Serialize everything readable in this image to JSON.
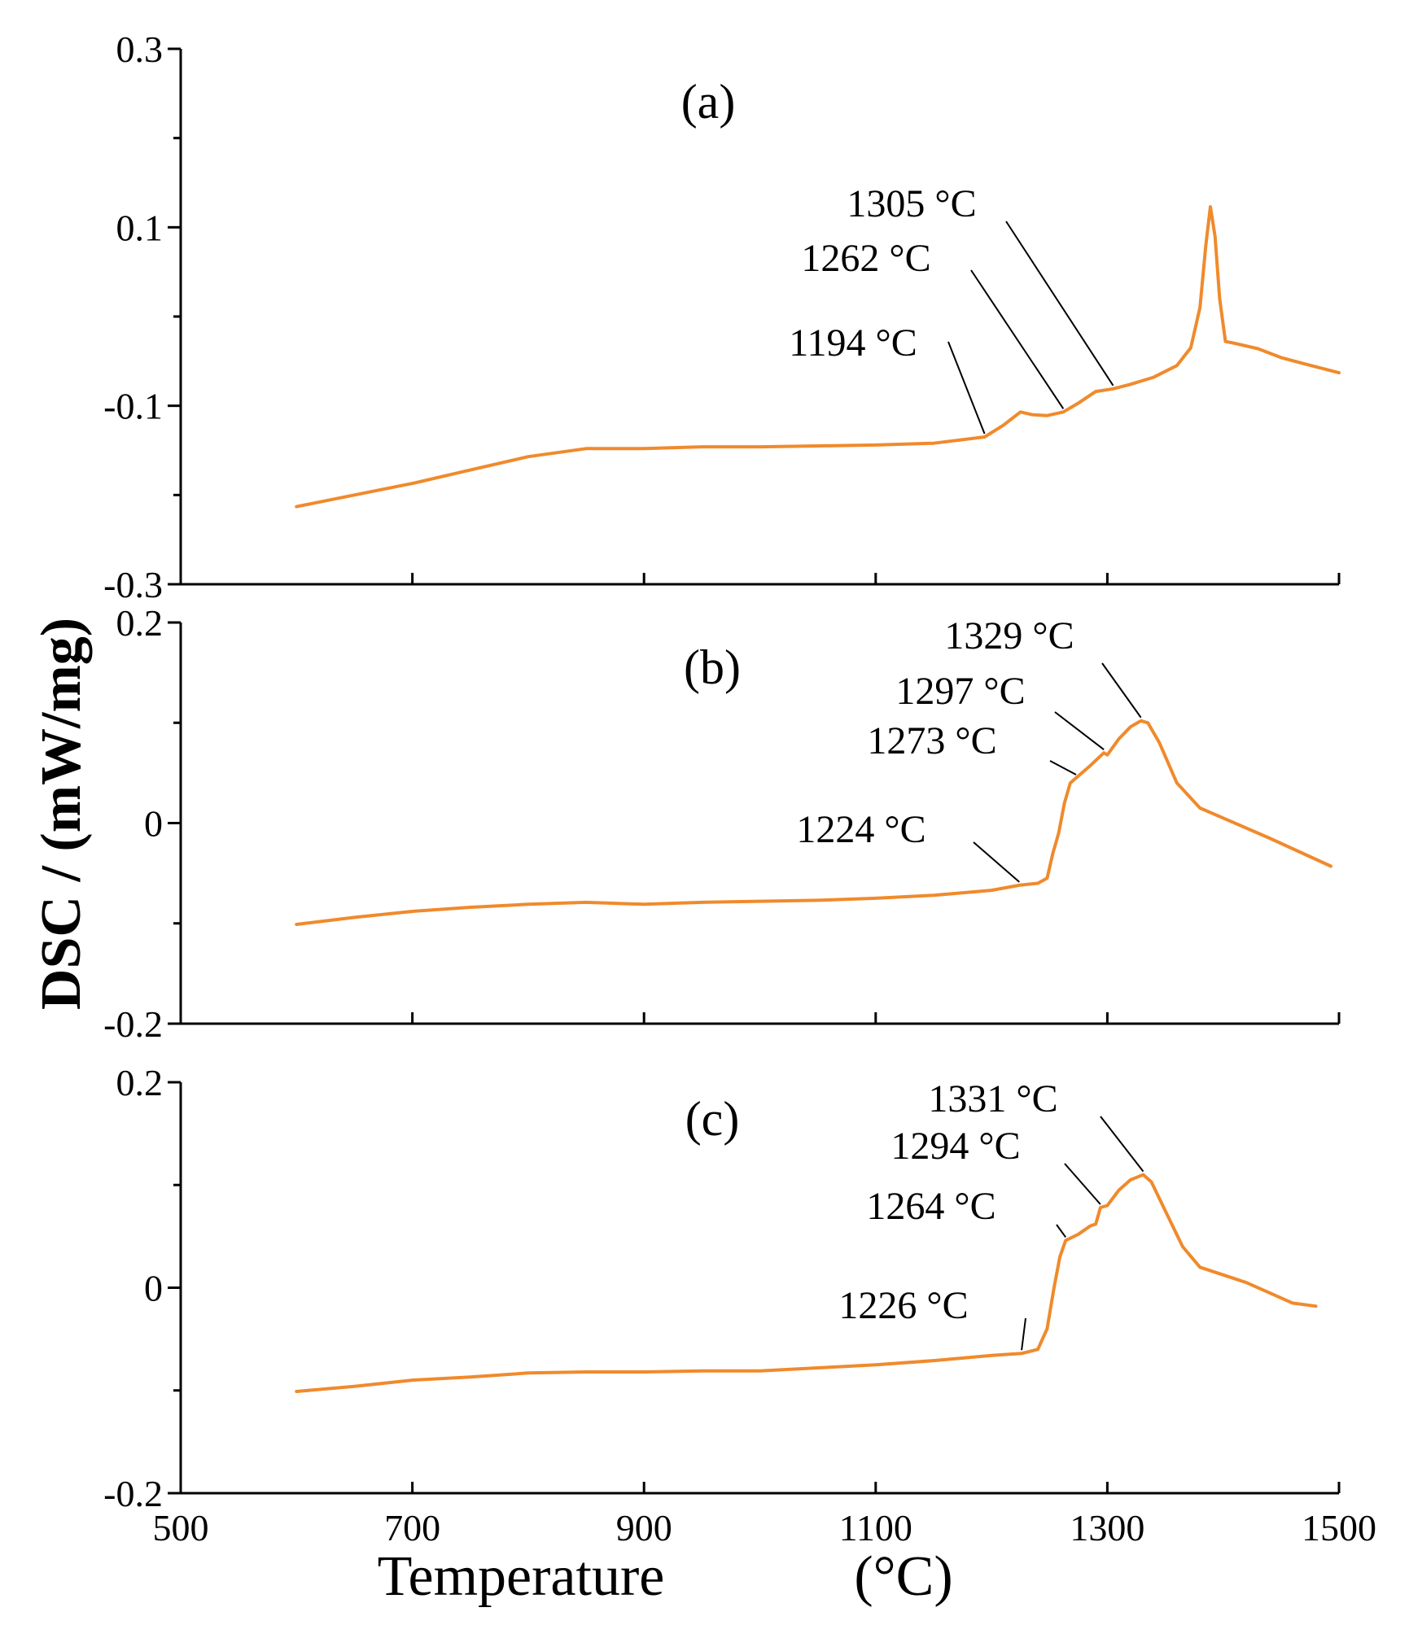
{
  "chart_data": {
    "type": "line",
    "xlabel": "Temperature",
    "xlabel_unit": "(°C)",
    "ylabel": "DSC / (mW/mg)",
    "xlim": [
      500,
      1500
    ],
    "x_tick_labels": [
      "500",
      "700",
      "900",
      "1100",
      "1300",
      "1500"
    ],
    "x_ticks": [
      500,
      700,
      900,
      1100,
      1300,
      1500
    ],
    "series_color": "#f08a2c",
    "panels": [
      {
        "label": "(a)",
        "ylim": [
          -0.3,
          0.3
        ],
        "y_ticks": [
          -0.3,
          -0.1,
          0.1,
          0.3
        ],
        "y_tick_labels": [
          "-0.3",
          "-0.1",
          "0.1",
          "0.3"
        ],
        "x": [
          600,
          650,
          700,
          750,
          800,
          850,
          900,
          950,
          1000,
          1050,
          1100,
          1150,
          1194,
          1210,
          1225,
          1235,
          1248,
          1262,
          1275,
          1290,
          1305,
          1320,
          1340,
          1360,
          1372,
          1380,
          1385,
          1389,
          1393,
          1397,
          1402,
          1410,
          1430,
          1450,
          1470,
          1500
        ],
        "y": [
          -0.213,
          -0.2,
          -0.187,
          -0.172,
          -0.157,
          -0.148,
          -0.148,
          -0.146,
          -0.146,
          -0.145,
          -0.144,
          -0.142,
          -0.135,
          -0.122,
          -0.107,
          -0.11,
          -0.111,
          -0.107,
          -0.097,
          -0.084,
          -0.081,
          -0.076,
          -0.068,
          -0.055,
          -0.035,
          0.01,
          0.08,
          0.123,
          0.09,
          0.02,
          -0.028,
          -0.03,
          -0.036,
          -0.046,
          -0.053,
          -0.063
        ]
      },
      {
        "label": "(b)",
        "ylim": [
          -0.2,
          0.2
        ],
        "y_ticks": [
          -0.2,
          0,
          0.2
        ],
        "y_tick_labels": [
          "-0.2",
          "0",
          "0.2"
        ],
        "x": [
          600,
          650,
          700,
          750,
          800,
          850,
          900,
          950,
          1000,
          1050,
          1100,
          1150,
          1200,
          1224,
          1240,
          1248,
          1253,
          1258,
          1263,
          1268,
          1273,
          1285,
          1297,
          1300,
          1310,
          1320,
          1329,
          1335,
          1345,
          1360,
          1380,
          1400,
          1440,
          1493
        ],
        "y": [
          -0.101,
          -0.094,
          -0.088,
          -0.084,
          -0.081,
          -0.079,
          -0.081,
          -0.079,
          -0.078,
          -0.077,
          -0.075,
          -0.072,
          -0.067,
          -0.062,
          -0.06,
          -0.055,
          -0.03,
          -0.01,
          0.02,
          0.04,
          0.045,
          0.057,
          0.07,
          0.068,
          0.084,
          0.096,
          0.102,
          0.1,
          0.08,
          0.04,
          0.015,
          0.005,
          -0.015,
          -0.043
        ]
      },
      {
        "label": "(c)",
        "ylim": [
          -0.2,
          0.2
        ],
        "y_ticks": [
          -0.2,
          0,
          0.2
        ],
        "y_tick_labels": [
          "-0.2",
          "0",
          "0.2"
        ],
        "x": [
          600,
          650,
          700,
          750,
          800,
          850,
          900,
          950,
          1000,
          1050,
          1100,
          1150,
          1200,
          1226,
          1240,
          1248,
          1254,
          1259,
          1264,
          1275,
          1285,
          1290,
          1294,
          1300,
          1310,
          1320,
          1331,
          1338,
          1350,
          1365,
          1380,
          1420,
          1460,
          1480
        ],
        "y": [
          -0.101,
          -0.096,
          -0.09,
          -0.087,
          -0.083,
          -0.082,
          -0.082,
          -0.081,
          -0.081,
          -0.078,
          -0.075,
          -0.071,
          -0.066,
          -0.064,
          -0.06,
          -0.04,
          0.0,
          0.03,
          0.046,
          0.052,
          0.06,
          0.062,
          0.078,
          0.08,
          0.095,
          0.105,
          0.11,
          0.103,
          0.075,
          0.04,
          0.02,
          0.005,
          -0.015,
          -0.018
        ]
      }
    ],
    "annotations": [
      {
        "panel": 0,
        "text": "1194 °C",
        "x": 1194
      },
      {
        "panel": 0,
        "text": "1262 °C",
        "x": 1262
      },
      {
        "panel": 0,
        "text": "1305 °C",
        "x": 1305
      },
      {
        "panel": 1,
        "text": "1224 °C",
        "x": 1224
      },
      {
        "panel": 1,
        "text": "1273 °C",
        "x": 1273
      },
      {
        "panel": 1,
        "text": "1297 °C",
        "x": 1297
      },
      {
        "panel": 1,
        "text": "1329 °C",
        "x": 1329
      },
      {
        "panel": 2,
        "text": "1226 °C",
        "x": 1226
      },
      {
        "panel": 2,
        "text": "1264 °C",
        "x": 1264
      },
      {
        "panel": 2,
        "text": "1294 °C",
        "x": 1294
      },
      {
        "panel": 2,
        "text": "1331 °C",
        "x": 1331
      }
    ]
  }
}
